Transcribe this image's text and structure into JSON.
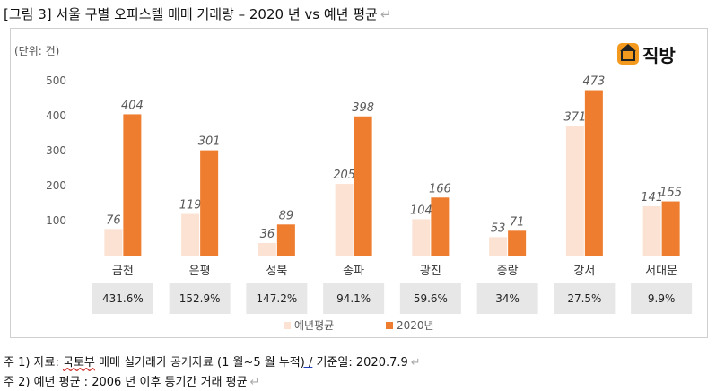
{
  "title": "[그림 3] 서울 구별 오피스텔 매매 거래량 – 2020 년 vs 예년 평균",
  "paragraph_mark": "↵",
  "unit_label": "(단위: 건)",
  "logo": {
    "text": "직방",
    "icon": "house-logo-icon"
  },
  "colors": {
    "avg": "#fbe2d3",
    "y2020": "#ee7d2f",
    "pct_box": "#e7e7e7",
    "axis_text": "#595959"
  },
  "chart_data": {
    "type": "bar",
    "categories": [
      "금천",
      "은평",
      "성북",
      "송파",
      "광진",
      "중랑",
      "강서",
      "서대문"
    ],
    "series": [
      {
        "name": "예년평균",
        "values": [
          76,
          119,
          36,
          205,
          104,
          53,
          371,
          141
        ]
      },
      {
        "name": "2020년",
        "values": [
          404,
          301,
          89,
          398,
          166,
          71,
          473,
          155
        ]
      }
    ],
    "ylim": [
      0,
      500
    ],
    "yticks": [
      0,
      100,
      200,
      300,
      400,
      500
    ],
    "ytick_labels": [
      "-",
      "100",
      "200",
      "300",
      "400",
      "500"
    ],
    "percent_labels": [
      "431.6%",
      "152.9%",
      "147.2%",
      "94.1%",
      "59.6%",
      "34%",
      "27.5%",
      "9.9%"
    ],
    "legend_placement": "bottom",
    "grid": false
  },
  "notes": {
    "n1_prefix": "주 1) 자료: ",
    "n1_source": "국토부",
    "n1_mid": " 매매 실거래가 공개자료 (1 월~5 월 누적",
    "n1_slash": ") /",
    "n1_tail": " 기준일: 2020.7.9",
    "n2_prefix": "주 2) 예년 ",
    "n2_term": "평균 :",
    "n2_tail": " 2006 년 이후 동기간 거래 평균"
  }
}
